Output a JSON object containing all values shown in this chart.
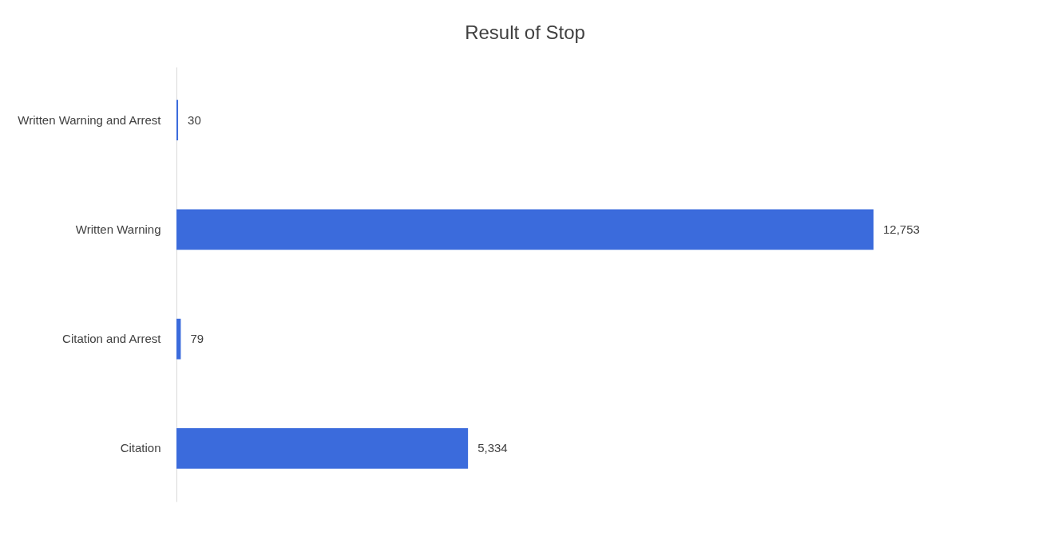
{
  "chart_data": {
    "type": "bar",
    "title": "Result of Stop",
    "orientation": "horizontal",
    "categories": [
      "Written Warning and Arrest",
      "Written Warning",
      "Citation and Arrest",
      "Citation"
    ],
    "values": [
      30,
      12753,
      79,
      5334
    ],
    "color": "#3b6bdc",
    "value_labels": [
      "30",
      "12,753",
      "79",
      "5,334"
    ]
  }
}
